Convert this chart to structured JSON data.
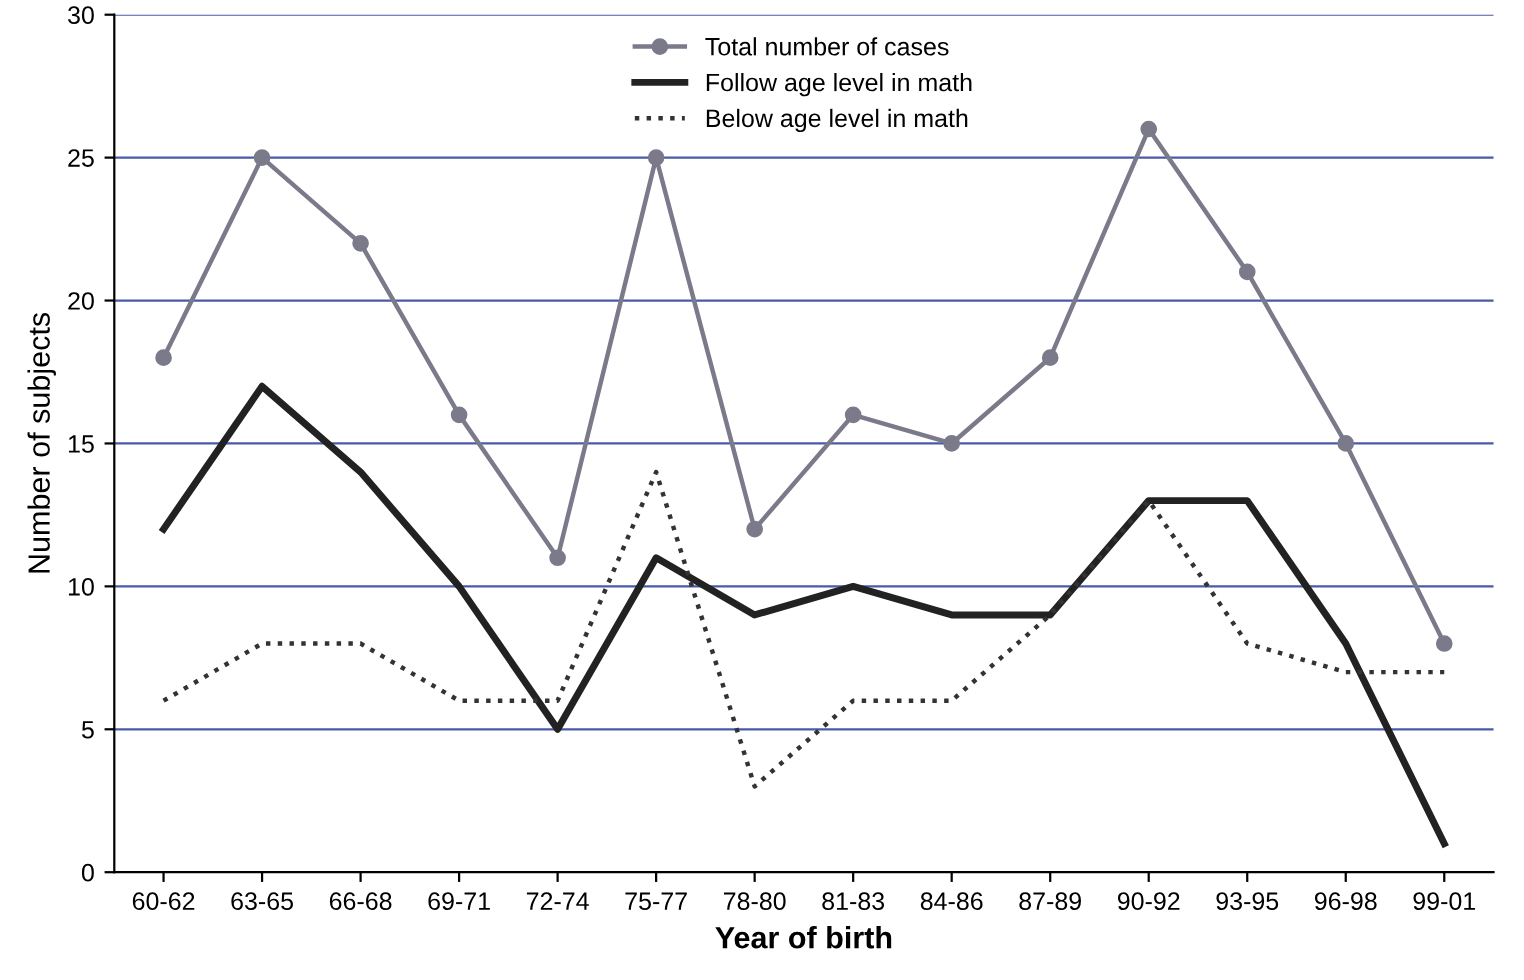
{
  "chart_data": {
    "type": "line",
    "xlabel": "Year of birth",
    "ylabel": "Number of subjects",
    "categories": [
      "60-62",
      "63-65",
      "66-68",
      "69-71",
      "72-74",
      "75-77",
      "78-80",
      "81-83",
      "84-86",
      "87-89",
      "90-92",
      "93-95",
      "96-98",
      "99-01"
    ],
    "series": [
      {
        "name": "Total number of cases",
        "color": "#7a7a8a",
        "marker": "circle",
        "line_style": "solid",
        "values": [
          18,
          25,
          22,
          16,
          11,
          25,
          12,
          16,
          15,
          18,
          26,
          21,
          15,
          8
        ]
      },
      {
        "name": "Follow age level in math",
        "color": "#222222",
        "marker": "none",
        "line_style": "solid",
        "values": [
          12,
          17,
          14,
          10,
          5,
          11,
          9,
          10,
          9,
          9,
          13,
          13,
          8,
          1
        ]
      },
      {
        "name": "Below age level in math",
        "color": "#333333",
        "marker": "none",
        "line_style": "dotted",
        "values": [
          6,
          8,
          8,
          6,
          6,
          14,
          3,
          6,
          6,
          9,
          13,
          8,
          7,
          7
        ]
      }
    ],
    "ylim": [
      0,
      30
    ],
    "yticks": [
      0,
      5,
      10,
      15,
      20,
      25,
      30
    ],
    "grid": "y",
    "legend": "top"
  }
}
